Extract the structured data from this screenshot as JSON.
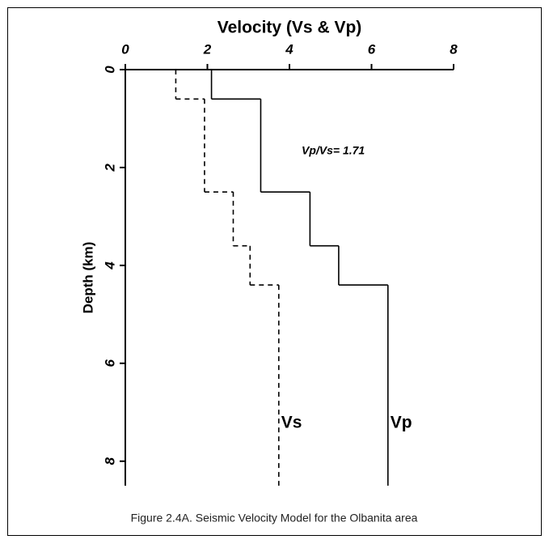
{
  "chart_data": {
    "type": "step-profile",
    "title": "Velocity (Vs & Vp)",
    "y_label": "Depth (km)",
    "caption": "Figure 2.4A. Seismic Velocity Model for the Olbanita area",
    "annotation": "Vp/Vs= 1.71",
    "xlim": [
      0,
      8
    ],
    "xticks": [
      0,
      2,
      4,
      6,
      8
    ],
    "ylim": [
      0,
      8.5
    ],
    "yticks": [
      0,
      2,
      4,
      6,
      8
    ],
    "y_inverted": true,
    "interfaces": [
      0.6,
      2.5,
      3.6,
      4.4
    ],
    "series": [
      {
        "name": "Vp",
        "color": "#000000",
        "dash": false,
        "values": [
          2.1,
          3.3,
          4.5,
          5.2,
          6.4
        ]
      },
      {
        "name": "Vs",
        "color": "#000000",
        "dash": true,
        "values": [
          1.23,
          1.93,
          2.63,
          3.04,
          3.74
        ]
      }
    ]
  }
}
